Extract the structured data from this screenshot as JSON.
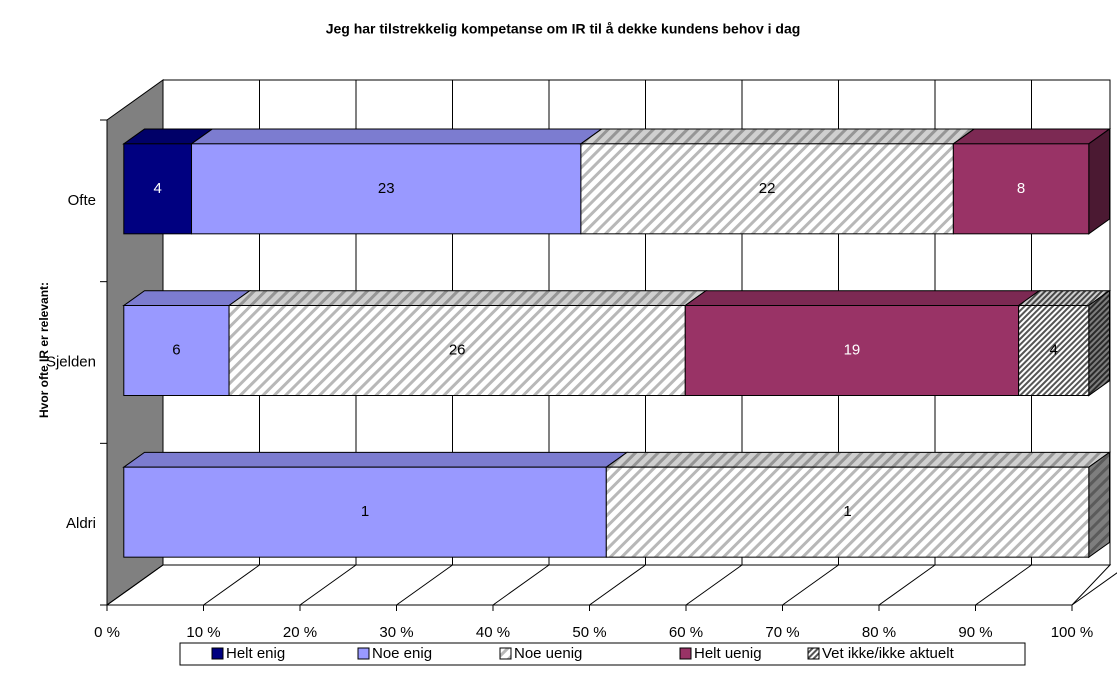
{
  "chart_data": {
    "type": "bar3d_percent_stacked_horizontal",
    "title": "Jeg har tilstrekkelig kompetanse om IR til å dekke kundens behov i dag",
    "y_label": "Hvor ofte IR er relevant:",
    "categories": [
      "Ofte",
      "Sjelden",
      "Aldri"
    ],
    "series": [
      {
        "name": "Helt enig",
        "color": "#000080",
        "values": [
          4,
          null,
          null
        ]
      },
      {
        "name": "Noe enig",
        "color": "#9999ff",
        "values": [
          23,
          6,
          1
        ]
      },
      {
        "name": "Noe uenig",
        "color": "#c0c0c0",
        "pattern": "hatch",
        "values": [
          22,
          26,
          1
        ]
      },
      {
        "name": "Helt uenig",
        "color": "#993366",
        "values": [
          8,
          19,
          null
        ]
      },
      {
        "name": "Vet ikke/ikke aktuelt",
        "color": "#808080",
        "pattern": "dense-hatch",
        "values": [
          null,
          4,
          null
        ]
      }
    ],
    "xlim": [
      0,
      100
    ],
    "xticks": [
      {
        "value": 0,
        "label": "0 %"
      },
      {
        "value": 10,
        "label": "10 %"
      },
      {
        "value": 20,
        "label": "20 %"
      },
      {
        "value": 30,
        "label": "30 %"
      },
      {
        "value": 40,
        "label": "40 %"
      },
      {
        "value": 50,
        "label": "50 %"
      },
      {
        "value": 60,
        "label": "60 %"
      },
      {
        "value": 70,
        "label": "70 %"
      },
      {
        "value": 80,
        "label": "80 %"
      },
      {
        "value": 90,
        "label": "90 %"
      },
      {
        "value": 100,
        "label": "100 %"
      }
    ],
    "grid": true,
    "legend": "bottom"
  }
}
